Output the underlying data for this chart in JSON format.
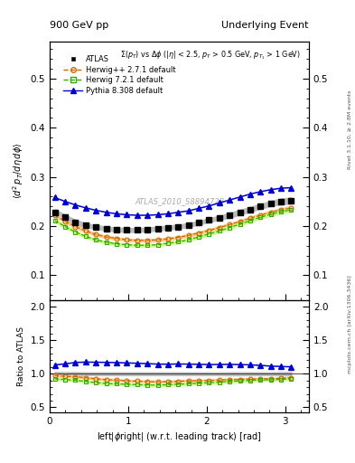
{
  "title_left": "900 GeV pp",
  "title_right": "Underlying Event",
  "subtitle": "Σ(p_{T}) vs Δφ (|η| < 2.5, p_{T} > 0.5 GeV, p_{T_1} > 1 GeV)",
  "watermark": "ATLAS_2010_S8894728",
  "ylabel_main": "⟨d² p_T/dηdφ⟩",
  "ylabel_ratio": "Ratio to ATLAS",
  "xlabel": "left|φright| (w.r.t. leading track) [rad]",
  "right_label_top": "Rivet 3.1.10, ≥ 2.8M events",
  "right_label_bottom": "mcplots.cern.ch [arXiv:1306.3436]",
  "xlim": [
    0,
    3.3
  ],
  "ylim_main": [
    0.05,
    0.575
  ],
  "ylim_ratio": [
    0.43,
    2.1
  ],
  "yticks_main": [
    0.1,
    0.2,
    0.3,
    0.4,
    0.5
  ],
  "yticks_ratio": [
    0.5,
    1.0,
    1.5,
    2.0
  ],
  "xticks": [
    0,
    1,
    2,
    3
  ],
  "atlas_color": "#000000",
  "herwig_pp_color": "#cc6600",
  "herwig72_color": "#33aa00",
  "pythia_color": "#0000cc",
  "atlas_x": [
    0.0654,
    0.1963,
    0.3272,
    0.4581,
    0.589,
    0.7199,
    0.8508,
    0.9817,
    1.1126,
    1.2435,
    1.3744,
    1.5053,
    1.6362,
    1.7671,
    1.898,
    2.0289,
    2.1598,
    2.2907,
    2.4216,
    2.5525,
    2.6834,
    2.8143,
    2.9452,
    3.0761
  ],
  "atlas_y": [
    0.228,
    0.218,
    0.208,
    0.202,
    0.198,
    0.195,
    0.193,
    0.192,
    0.192,
    0.193,
    0.195,
    0.197,
    0.199,
    0.202,
    0.207,
    0.212,
    0.217,
    0.222,
    0.228,
    0.234,
    0.24,
    0.246,
    0.25,
    0.252
  ],
  "atlas_yerr": [
    0.006,
    0.005,
    0.005,
    0.004,
    0.004,
    0.004,
    0.004,
    0.004,
    0.004,
    0.004,
    0.004,
    0.004,
    0.004,
    0.004,
    0.004,
    0.004,
    0.004,
    0.005,
    0.005,
    0.005,
    0.005,
    0.005,
    0.006,
    0.006
  ],
  "herwig_pp_x": [
    0.0654,
    0.1963,
    0.3272,
    0.4581,
    0.589,
    0.7199,
    0.8508,
    0.9817,
    1.1126,
    1.2435,
    1.3744,
    1.5053,
    1.6362,
    1.7671,
    1.898,
    2.0289,
    2.1598,
    2.2907,
    2.4216,
    2.5525,
    2.6834,
    2.8143,
    2.9452,
    3.0761
  ],
  "herwig_pp_y": [
    0.222,
    0.21,
    0.199,
    0.19,
    0.183,
    0.178,
    0.175,
    0.172,
    0.171,
    0.171,
    0.172,
    0.174,
    0.177,
    0.181,
    0.186,
    0.191,
    0.197,
    0.203,
    0.209,
    0.216,
    0.222,
    0.228,
    0.233,
    0.237
  ],
  "herwig72_x": [
    0.0654,
    0.1963,
    0.3272,
    0.4581,
    0.589,
    0.7199,
    0.8508,
    0.9817,
    1.1126,
    1.2435,
    1.3744,
    1.5053,
    1.6362,
    1.7671,
    1.898,
    2.0289,
    2.1598,
    2.2907,
    2.4216,
    2.5525,
    2.6834,
    2.8143,
    2.9452,
    3.0761
  ],
  "herwig72_y": [
    0.211,
    0.199,
    0.188,
    0.179,
    0.172,
    0.167,
    0.164,
    0.162,
    0.161,
    0.161,
    0.162,
    0.165,
    0.168,
    0.172,
    0.178,
    0.184,
    0.19,
    0.197,
    0.204,
    0.211,
    0.218,
    0.224,
    0.229,
    0.233
  ],
  "pythia_x": [
    0.0654,
    0.1963,
    0.3272,
    0.4581,
    0.589,
    0.7199,
    0.8508,
    0.9817,
    1.1126,
    1.2435,
    1.3744,
    1.5053,
    1.6362,
    1.7671,
    1.898,
    2.0289,
    2.1598,
    2.2907,
    2.4216,
    2.5525,
    2.6834,
    2.8143,
    2.9452,
    3.0761
  ],
  "pythia_y": [
    0.258,
    0.25,
    0.243,
    0.237,
    0.232,
    0.228,
    0.225,
    0.223,
    0.222,
    0.222,
    0.223,
    0.225,
    0.228,
    0.231,
    0.236,
    0.241,
    0.247,
    0.253,
    0.259,
    0.265,
    0.27,
    0.274,
    0.277,
    0.278
  ],
  "atlas_band_color": "#bbbbbb",
  "herwig_pp_band_color": "#ffcc88",
  "herwig72_band_color": "#ccff88",
  "bg_color": "#ffffff"
}
